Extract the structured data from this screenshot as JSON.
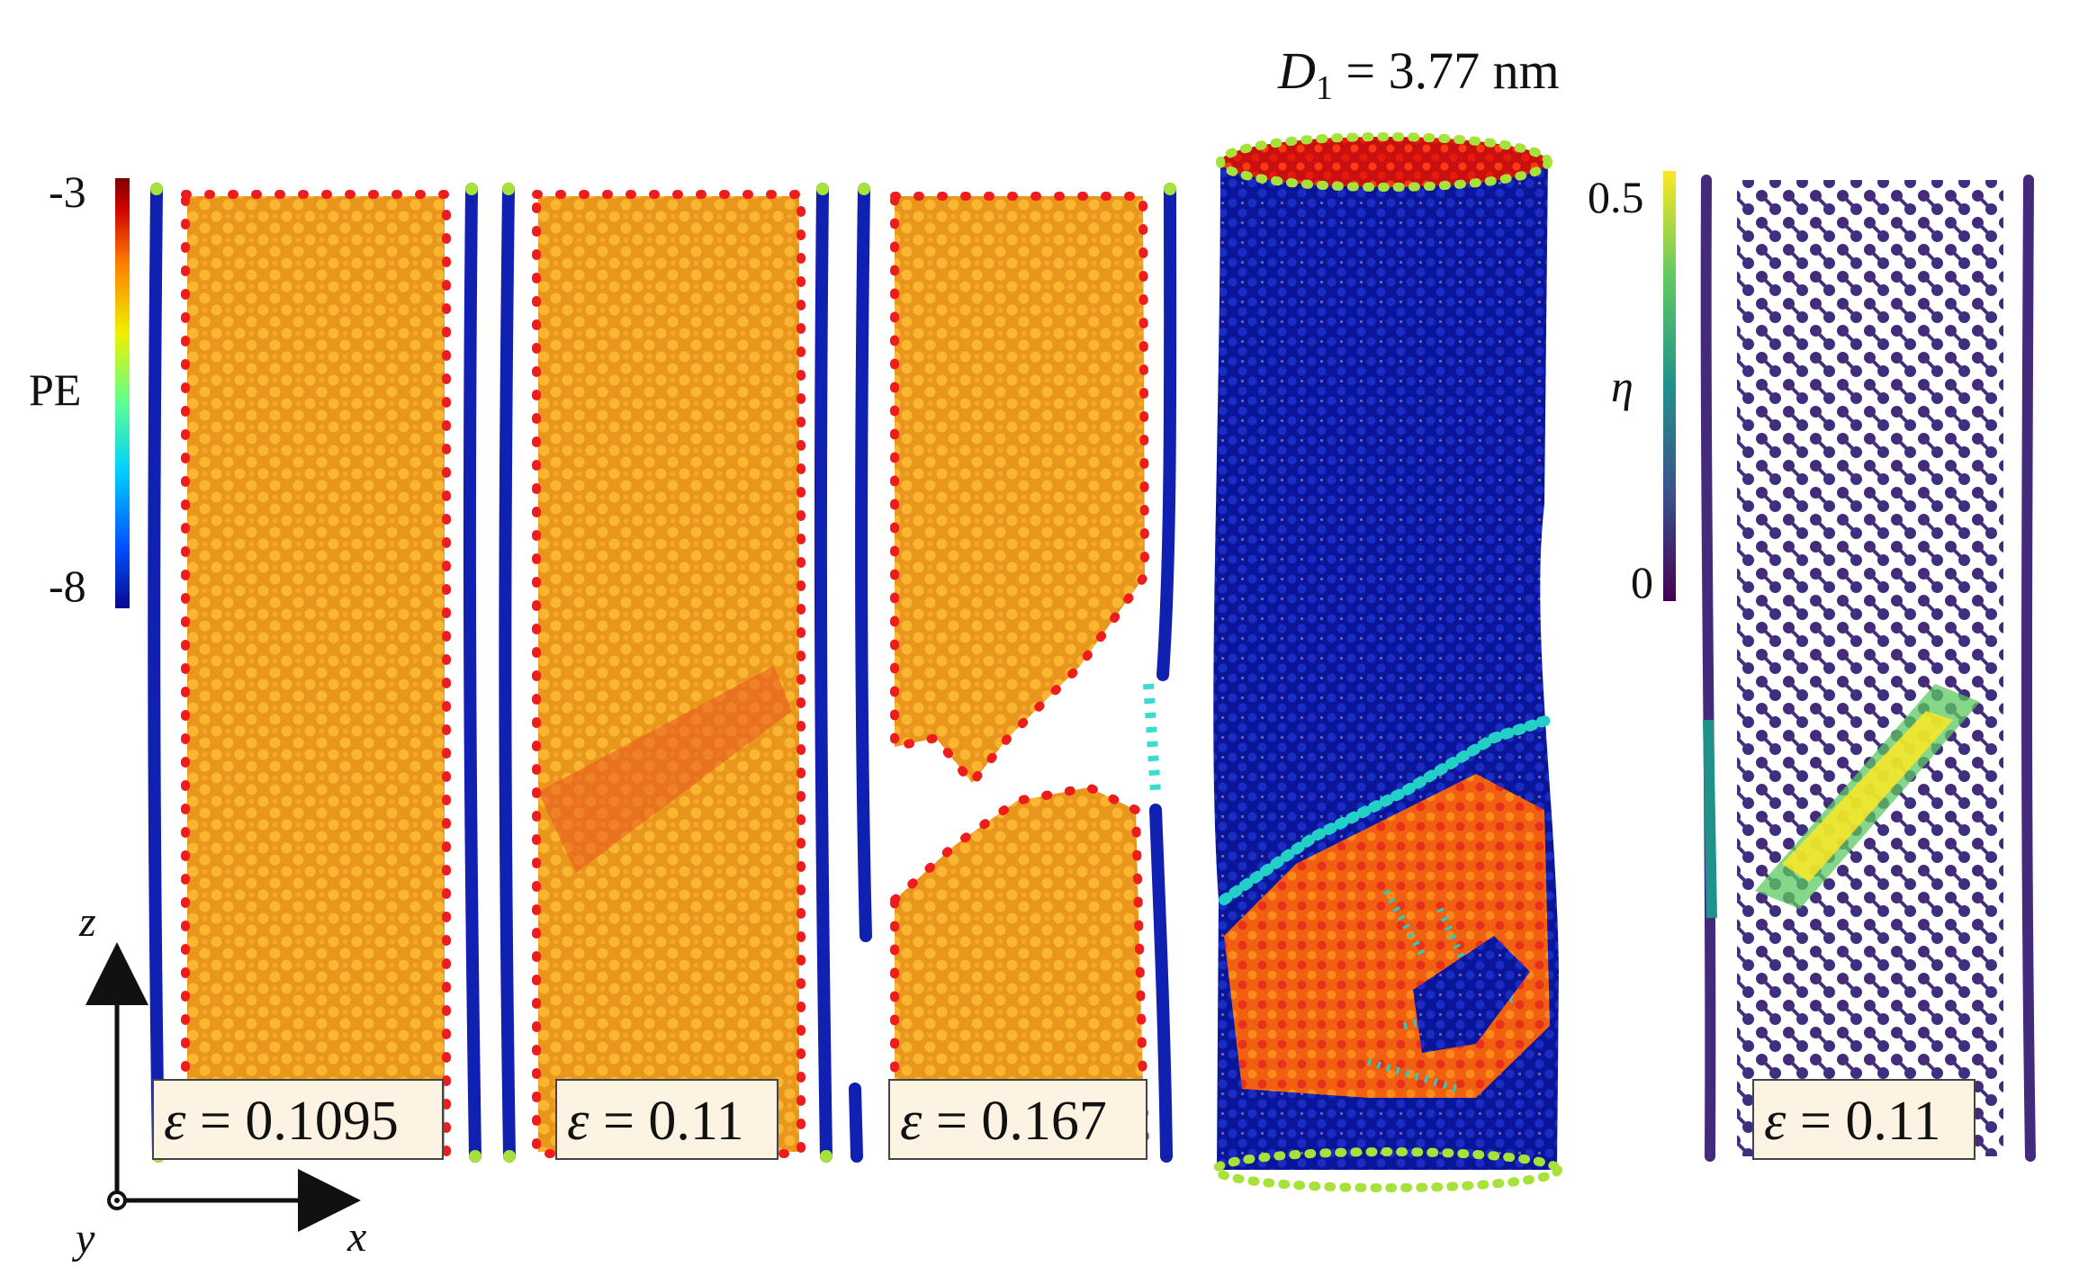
{
  "title": {
    "symbol": "D",
    "subscript": "1",
    "rest": " = 3.77 nm"
  },
  "pe_colorbar": {
    "label": "PE",
    "max_label": "-3",
    "min_label": "-8",
    "colors": [
      "#08088f",
      "#0050ff",
      "#00d0ff",
      "#60ff90",
      "#f0f000",
      "#ff8000",
      "#d00000",
      "#800000"
    ]
  },
  "eta_colorbar": {
    "label": "η",
    "max_label": "0.5",
    "min_label": "0",
    "colors": [
      "#440154",
      "#3b528b",
      "#21918c",
      "#5ec962",
      "#fde725"
    ]
  },
  "panels": [
    {
      "strain_symbol": "ε",
      "strain_value": " = 0.1095"
    },
    {
      "strain_symbol": "ε",
      "strain_value": " = 0.11"
    },
    {
      "strain_symbol": "ε",
      "strain_value": " = 0.167"
    },
    {
      "strain_symbol": "ε",
      "strain_value": " = 0.11"
    }
  ],
  "axes": {
    "vertical": "z",
    "horizontal": "x",
    "out_of_plane": "y"
  },
  "colors": {
    "wall_blue": "#1020b0",
    "edge_red": "#ee1c1c",
    "core_orange": "#f5a623",
    "tube_blue": "#0b1a9a",
    "cap_green": "#a6e23a",
    "viridis_dark": "#442a7a"
  }
}
